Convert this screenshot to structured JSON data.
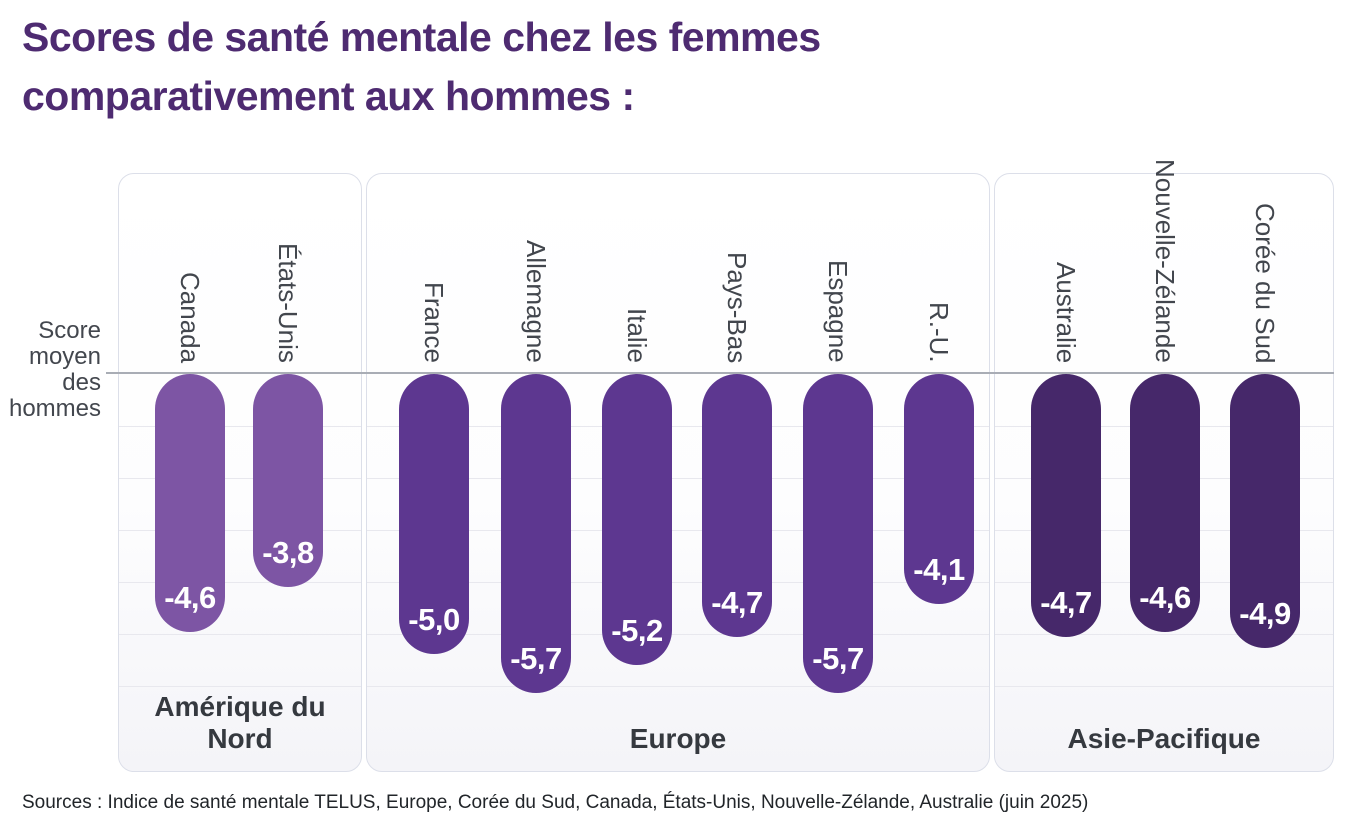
{
  "title": {
    "line1": "Scores de santé mentale chez les femmes",
    "line2": "comparativement aux hommes :"
  },
  "axis_label": "Score\nmoyen\ndes\nhommes",
  "source": "Sources : Indice de santé mentale TELUS, Europe, Corée du Sud, Canada, États-Unis, Nouvelle-Zélande, Australie (juin 2025)",
  "colors": {
    "title_purple": "#4e2b71",
    "north_america_bar": "#7d55a4",
    "europe_bar": "#5d3790",
    "asia_pacific_bar": "#46286a",
    "value_text": "#ffffff",
    "baseline": "#a9adb5",
    "gridline": "#e8e8ee",
    "panel_border": "#dcdfe9",
    "label_gray": "#42464d"
  },
  "chart_data": {
    "type": "bar",
    "title": "Scores de santé mentale chez les femmes comparativement aux hommes :",
    "ylabel": "Score moyen des hommes",
    "orientation": "columns hanging below baseline (negative values)",
    "baseline_value": 0,
    "ylim": [
      -6.5,
      0
    ],
    "grid": "horizontal, 1-unit spacing below baseline",
    "legend_position": "none",
    "groups": [
      {
        "region": "Amérique du Nord",
        "color": "#7d55a4",
        "bars": [
          {
            "country": "Canada",
            "value": -4.6,
            "display": "-4,6"
          },
          {
            "country": "États-Unis",
            "value": -3.8,
            "display": "-3,8"
          }
        ]
      },
      {
        "region": "Europe",
        "color": "#5d3790",
        "bars": [
          {
            "country": "France",
            "value": -5.0,
            "display": "-5,0"
          },
          {
            "country": "Allemagne",
            "value": -5.7,
            "display": "-5,7"
          },
          {
            "country": "Italie",
            "value": -5.2,
            "display": "-5,2"
          },
          {
            "country": "Pays-Bas",
            "value": -4.7,
            "display": "-4,7"
          },
          {
            "country": "Espagne",
            "value": -5.7,
            "display": "-5,7"
          },
          {
            "country": "R.-U.",
            "value": -4.1,
            "display": "-4,1"
          }
        ]
      },
      {
        "region": "Asie-Pacifique",
        "color": "#46286a",
        "bars": [
          {
            "country": "Australie",
            "value": -4.7,
            "display": "-4,7"
          },
          {
            "country": "Nouvelle-Zélande",
            "value": -4.6,
            "display": "-4,6"
          },
          {
            "country": "Corée du Sud",
            "value": -4.9,
            "display": "-4,9"
          }
        ]
      }
    ]
  }
}
